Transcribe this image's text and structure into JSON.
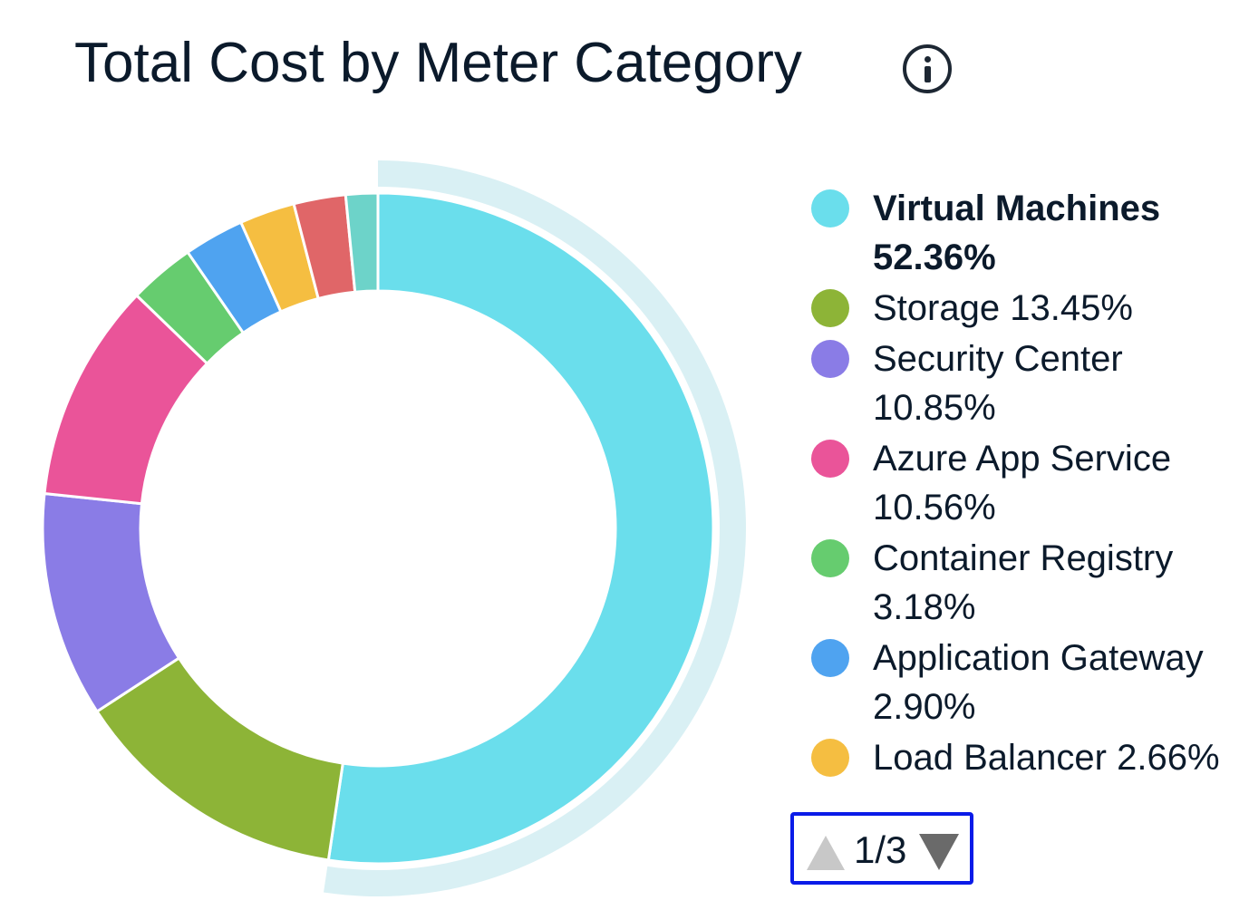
{
  "chart_data": {
    "type": "pie",
    "title": "Total Cost by Meter Category",
    "donut": true,
    "highlighted": "Virtual Machines",
    "slices": [
      {
        "name": "Virtual Machines",
        "value": 52.36,
        "label": "52.36%",
        "color": "#6adeec"
      },
      {
        "name": "Storage",
        "value": 13.45,
        "label": "13.45%",
        "color": "#8db437"
      },
      {
        "name": "Security Center",
        "value": 10.85,
        "label": "10.85%",
        "color": "#8a7ce6"
      },
      {
        "name": "Azure App Service",
        "value": 10.56,
        "label": "10.56%",
        "color": "#ea5499"
      },
      {
        "name": "Container Registry",
        "value": 3.18,
        "label": "3.18%",
        "color": "#66cc6f"
      },
      {
        "name": "Application Gateway",
        "value": 2.9,
        "label": "2.90%",
        "color": "#4fa3f0"
      },
      {
        "name": "Load Balancer",
        "value": 2.66,
        "label": "2.66%",
        "color": "#f5be41"
      },
      {
        "name": "",
        "value": 2.5,
        "label": "",
        "color": "#e06668"
      },
      {
        "name": "",
        "value": 1.54,
        "label": "",
        "color": "#6dd3c9"
      }
    ],
    "legend_placement": "right"
  },
  "highlight_color": "#d9f0f4",
  "pager": {
    "text": "1/3",
    "current": 1,
    "total": 3
  }
}
